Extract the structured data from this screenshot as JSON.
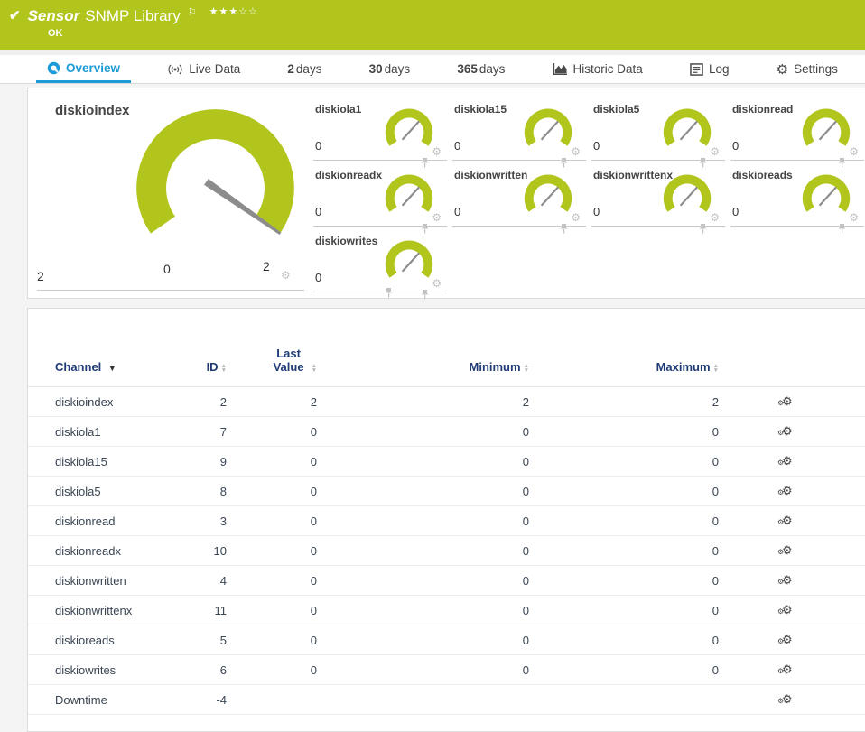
{
  "colors": {
    "brand_green": "#b2c51d",
    "accent_blue": "#1d9bd8",
    "needle_gray": "#8c8c8c"
  },
  "header": {
    "kind": "Sensor",
    "title": "SNMP Library",
    "status": "OK",
    "rating": {
      "filled": 3,
      "total": 5
    }
  },
  "tabs": [
    {
      "id": "overview",
      "icon": "gauge-icon",
      "label": "Overview",
      "active": true
    },
    {
      "id": "live-data",
      "icon": "broadcast-icon",
      "label": "Live Data"
    },
    {
      "id": "2-days",
      "num": "2",
      "label": "days"
    },
    {
      "id": "30-days",
      "num": "30",
      "label": "days"
    },
    {
      "id": "365-days",
      "num": "365",
      "label": "days"
    },
    {
      "id": "historic-data",
      "icon": "area-chart-icon",
      "label": "Historic Data"
    },
    {
      "id": "log",
      "icon": "log-icon",
      "label": "Log"
    },
    {
      "id": "settings",
      "icon": "gear-icon",
      "label": "Settings"
    }
  ],
  "gauges": {
    "main": {
      "name": "diskioindex",
      "value": "2",
      "scale_min": "0",
      "scale_max": "2"
    },
    "small": [
      {
        "name": "diskiola1",
        "value": "0"
      },
      {
        "name": "diskiola15",
        "value": "0"
      },
      {
        "name": "diskiola5",
        "value": "0"
      },
      {
        "name": "diskionread",
        "value": "0"
      },
      {
        "name": "diskionreadx",
        "value": "0"
      },
      {
        "name": "diskionwritten",
        "value": "0"
      },
      {
        "name": "diskionwrittenx",
        "value": "0"
      },
      {
        "name": "diskioreads",
        "value": "0"
      },
      {
        "name": "diskiowrites",
        "value": "0"
      }
    ]
  },
  "table": {
    "columns": [
      {
        "label": "Channel",
        "sorted": "desc"
      },
      {
        "label": "ID",
        "sort": true
      },
      {
        "label": "Last Value",
        "sort": true
      },
      {
        "label": "Minimum",
        "sort": true
      },
      {
        "label": "Maximum",
        "sort": true
      }
    ],
    "rows": [
      {
        "channel": "diskioindex",
        "id": "2",
        "last": "2",
        "min": "2",
        "max": "2"
      },
      {
        "channel": "diskiola1",
        "id": "7",
        "last": "0",
        "min": "0",
        "max": "0"
      },
      {
        "channel": "diskiola15",
        "id": "9",
        "last": "0",
        "min": "0",
        "max": "0"
      },
      {
        "channel": "diskiola5",
        "id": "8",
        "last": "0",
        "min": "0",
        "max": "0"
      },
      {
        "channel": "diskionread",
        "id": "3",
        "last": "0",
        "min": "0",
        "max": "0"
      },
      {
        "channel": "diskionreadx",
        "id": "10",
        "last": "0",
        "min": "0",
        "max": "0"
      },
      {
        "channel": "diskionwritten",
        "id": "4",
        "last": "0",
        "min": "0",
        "max": "0"
      },
      {
        "channel": "diskionwrittenx",
        "id": "11",
        "last": "0",
        "min": "0",
        "max": "0"
      },
      {
        "channel": "diskioreads",
        "id": "5",
        "last": "0",
        "min": "0",
        "max": "0"
      },
      {
        "channel": "diskiowrites",
        "id": "6",
        "last": "0",
        "min": "0",
        "max": "0"
      },
      {
        "channel": "Downtime",
        "id": "-4",
        "last": "",
        "min": "",
        "max": ""
      }
    ]
  }
}
